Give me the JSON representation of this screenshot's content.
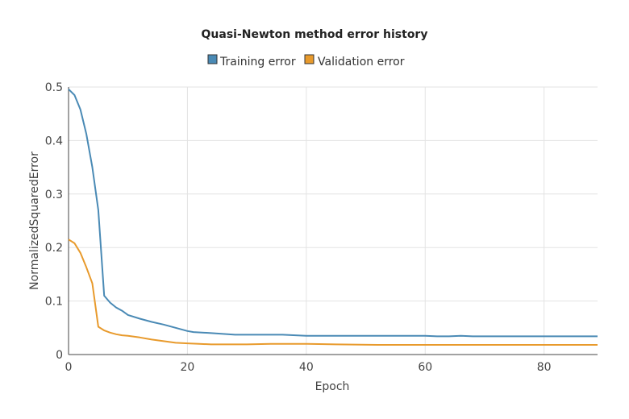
{
  "chart_data": {
    "type": "line",
    "title": "Quasi-Newton method error history",
    "xlabel": "Epoch",
    "ylabel": "NormalizedSquaredError",
    "xlim": [
      0,
      89
    ],
    "ylim": [
      0,
      0.5
    ],
    "x_ticks": [
      0,
      20,
      40,
      60,
      80
    ],
    "y_ticks": [
      0,
      0.1,
      0.2,
      0.3,
      0.4,
      0.5
    ],
    "y_tick_labels": [
      "0",
      "0.1",
      "0.2",
      "0.3",
      "0.4",
      "0.5"
    ],
    "grid": true,
    "legend_position": "top-center",
    "series": [
      {
        "name": "Training error",
        "color": "#4a8ab5",
        "x": [
          0,
          1,
          2,
          3,
          4,
          5,
          6,
          7,
          8,
          9,
          10,
          12,
          14,
          16,
          18,
          20,
          21,
          24,
          28,
          32,
          36,
          40,
          50,
          60,
          62,
          64,
          66,
          68,
          70,
          80,
          89
        ],
        "y": [
          0.496,
          0.485,
          0.458,
          0.412,
          0.35,
          0.27,
          0.11,
          0.097,
          0.088,
          0.082,
          0.074,
          0.067,
          0.061,
          0.056,
          0.05,
          0.044,
          0.042,
          0.04,
          0.037,
          0.037,
          0.037,
          0.035,
          0.035,
          0.035,
          0.034,
          0.034,
          0.035,
          0.034,
          0.034,
          0.034,
          0.034
        ]
      },
      {
        "name": "Validation error",
        "color": "#e89a2c",
        "x": [
          0,
          1,
          2,
          3,
          4,
          5,
          6,
          7,
          8,
          9,
          10,
          12,
          14,
          16,
          18,
          20,
          22,
          24,
          30,
          34,
          40,
          45,
          52,
          60,
          70,
          80,
          89
        ],
        "y": [
          0.215,
          0.208,
          0.19,
          0.163,
          0.133,
          0.052,
          0.045,
          0.041,
          0.038,
          0.036,
          0.035,
          0.032,
          0.028,
          0.025,
          0.022,
          0.021,
          0.02,
          0.019,
          0.019,
          0.02,
          0.02,
          0.019,
          0.018,
          0.018,
          0.018,
          0.018,
          0.018
        ]
      }
    ]
  }
}
